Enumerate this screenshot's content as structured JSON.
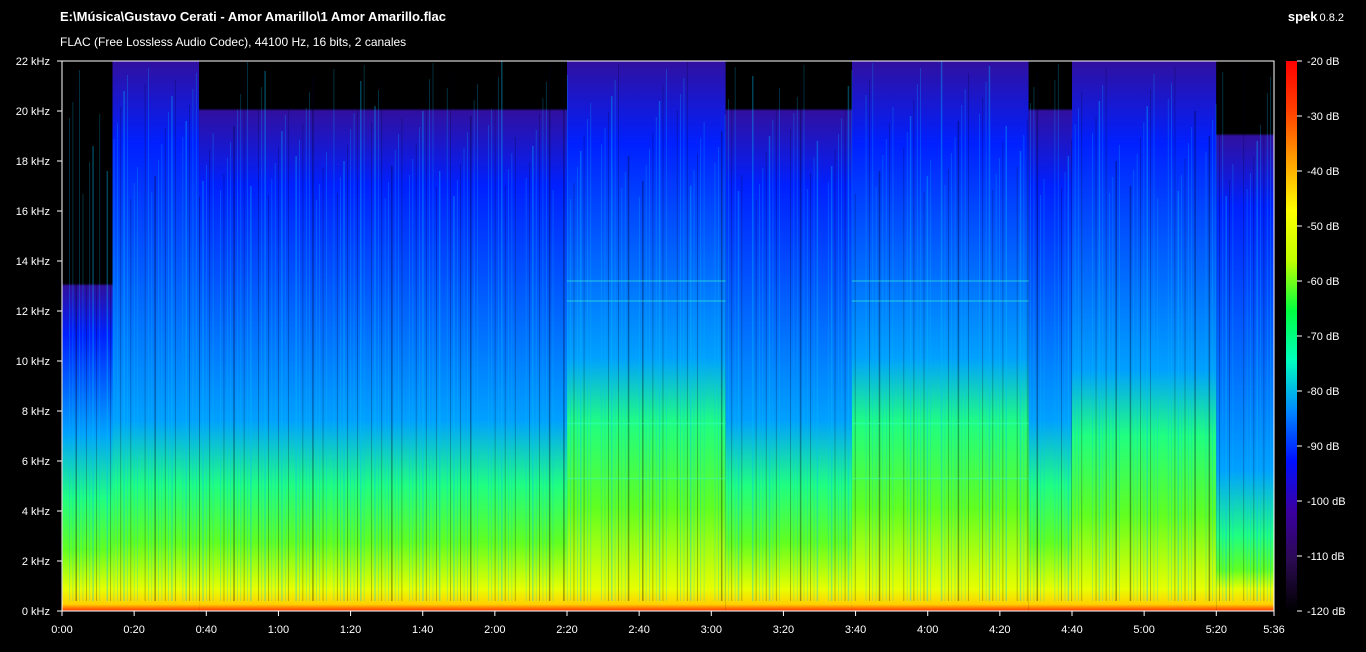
{
  "header": {
    "file_path": "E:\\Música\\Gustavo Cerati - Amor Amarillo\\1 Amor Amarillo.flac",
    "format_info": "FLAC (Free Lossless Audio Codec), 44100 Hz, 16 bits, 2 canales",
    "app_name": "spek",
    "app_version": "0.8.2"
  },
  "chart_data": {
    "type": "heatmap",
    "x_axis": {
      "range_seconds": [
        0,
        336
      ],
      "tick_labels": [
        "0:00",
        "0:20",
        "0:40",
        "1:00",
        "1:20",
        "1:40",
        "2:00",
        "2:20",
        "2:40",
        "3:00",
        "3:20",
        "3:40",
        "4:00",
        "4:20",
        "4:40",
        "5:00",
        "5:20",
        "5:36"
      ],
      "tick_values_seconds": [
        0,
        20,
        40,
        60,
        80,
        100,
        120,
        140,
        160,
        180,
        200,
        220,
        240,
        260,
        280,
        300,
        320,
        336
      ]
    },
    "y_axis": {
      "range_khz": [
        0,
        22
      ],
      "tick_labels": [
        "0 kHz",
        "2 kHz",
        "4 kHz",
        "6 kHz",
        "8 kHz",
        "10 kHz",
        "12 kHz",
        "14 kHz",
        "16 kHz",
        "18 kHz",
        "20 kHz",
        "22 kHz"
      ],
      "tick_values_khz": [
        0,
        2,
        4,
        6,
        8,
        10,
        12,
        14,
        16,
        18,
        20,
        22
      ]
    },
    "color_scale": {
      "range_db": [
        -120,
        -20
      ],
      "tick_labels": [
        "-20 dB",
        "-30 dB",
        "-40 dB",
        "-50 dB",
        "-60 dB",
        "-70 dB",
        "-80 dB",
        "-90 dB",
        "-100 dB",
        "-110 dB",
        "-120 dB"
      ],
      "tick_values_db": [
        -20,
        -30,
        -40,
        -50,
        -60,
        -70,
        -80,
        -90,
        -100,
        -110,
        -120
      ],
      "colors": [
        "#000000",
        "#2a0a50",
        "#3a00a0",
        "#0010ff",
        "#0088ff",
        "#00ffc0",
        "#00ff40",
        "#c0ff00",
        "#ffff00",
        "#ffa000",
        "#ff4000",
        "#ff0000"
      ]
    },
    "segments": [
      {
        "start": 0,
        "end": 14,
        "top_khz": 13,
        "bright_khz": 4.5,
        "level": 0.25
      },
      {
        "start": 14,
        "end": 38,
        "top_khz": 22,
        "bright_khz": 5,
        "level": 0.35
      },
      {
        "start": 38,
        "end": 140,
        "top_khz": 20,
        "bright_khz": 5,
        "level": 0.45
      },
      {
        "start": 140,
        "end": 184,
        "top_khz": 22,
        "bright_khz": 7.5,
        "level": 0.6
      },
      {
        "start": 184,
        "end": 219,
        "top_khz": 20,
        "bright_khz": 5,
        "level": 0.45
      },
      {
        "start": 219,
        "end": 268,
        "top_khz": 22,
        "bright_khz": 7.5,
        "level": 0.6
      },
      {
        "start": 268,
        "end": 280,
        "top_khz": 20,
        "bright_khz": 5,
        "level": 0.45
      },
      {
        "start": 280,
        "end": 320,
        "top_khz": 22,
        "bright_khz": 7,
        "level": 0.5
      },
      {
        "start": 320,
        "end": 336,
        "top_khz": 19,
        "bright_khz": 3,
        "level": 0.3
      }
    ]
  }
}
